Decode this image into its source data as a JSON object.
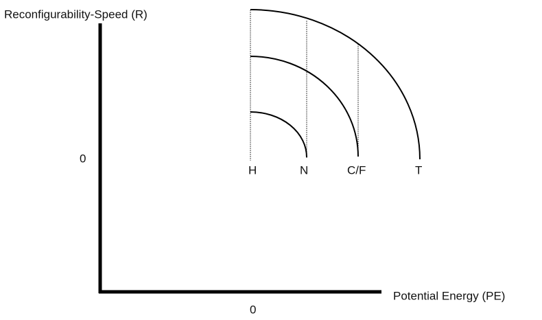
{
  "axes": {
    "y_label": "Reconfigurability-Speed (R)",
    "y_origin": "0",
    "x_label": "Potential Energy (PE)",
    "x_origin": "0"
  },
  "curves": [
    {
      "label": "H"
    },
    {
      "label": "N"
    },
    {
      "label": "C/F"
    },
    {
      "label": "T"
    }
  ]
}
